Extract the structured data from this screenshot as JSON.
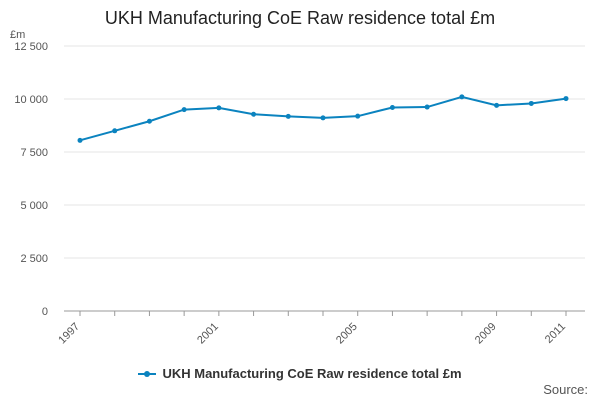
{
  "colors": {
    "series": "#0b83bf",
    "grid": "#e6e6e6",
    "axis": "#999999"
  },
  "chart_data": {
    "type": "line",
    "title": "UKH Manufacturing CoE Raw residence total £m",
    "ylabel": "£m",
    "xlabel": "",
    "ylim": [
      0,
      12500
    ],
    "xlim": [
      1997,
      2011
    ],
    "yticks": [
      0,
      2500,
      5000,
      7500,
      10000,
      12500
    ],
    "ytick_labels": [
      "0",
      "2 500",
      "5 000",
      "7 500",
      "10 000",
      "12 500"
    ],
    "xticks": [
      1997,
      2001,
      2005,
      2009,
      2011
    ],
    "xtick_labels": [
      "1997",
      "2001",
      "2005",
      "2009",
      "2011"
    ],
    "grid": true,
    "legend_position": "bottom",
    "series": [
      {
        "name": "UKH Manufacturing CoE Raw residence total £m",
        "x": [
          1997,
          1998,
          1999,
          2000,
          2001,
          2002,
          2003,
          2004,
          2005,
          2006,
          2007,
          2008,
          2009,
          2010,
          2011
        ],
        "values": [
          8050,
          8500,
          8950,
          9500,
          9580,
          9280,
          9180,
          9110,
          9190,
          9600,
          9620,
          10100,
          9700,
          9790,
          10020
        ]
      }
    ]
  },
  "source_label": "Source:"
}
